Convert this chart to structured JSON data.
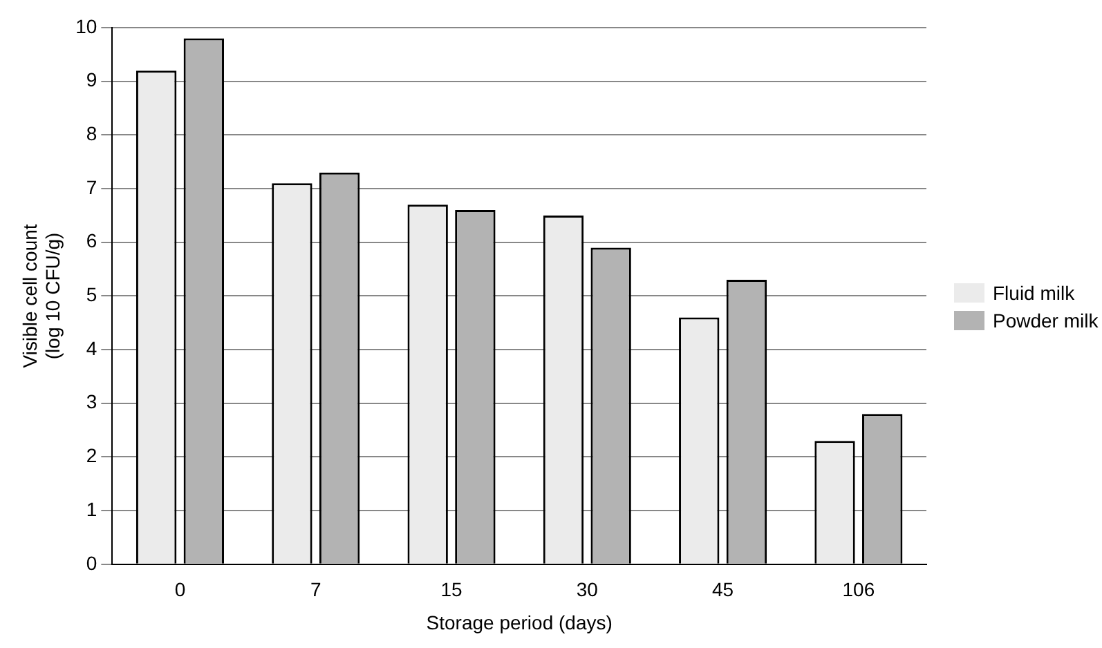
{
  "chart_data": {
    "type": "bar",
    "xlabel": "Storage period (days)",
    "ylabel": "Visible cell count\n(log 10 CFU/g)",
    "categories": [
      "0",
      "7",
      "15",
      "30",
      "45",
      "106"
    ],
    "series": [
      {
        "name": "Fluid milk",
        "color": "#ebebeb",
        "values": [
          9.2,
          7.1,
          6.7,
          6.5,
          4.6,
          2.3
        ]
      },
      {
        "name": "Powder milk",
        "color": "#b3b3b3",
        "values": [
          9.8,
          7.3,
          6.6,
          5.9,
          5.3,
          2.8
        ]
      }
    ],
    "ylim": [
      0,
      10
    ],
    "yticks": [
      0,
      1,
      2,
      3,
      4,
      5,
      6,
      7,
      8,
      9,
      10
    ],
    "grid": "y",
    "legend": "right"
  }
}
